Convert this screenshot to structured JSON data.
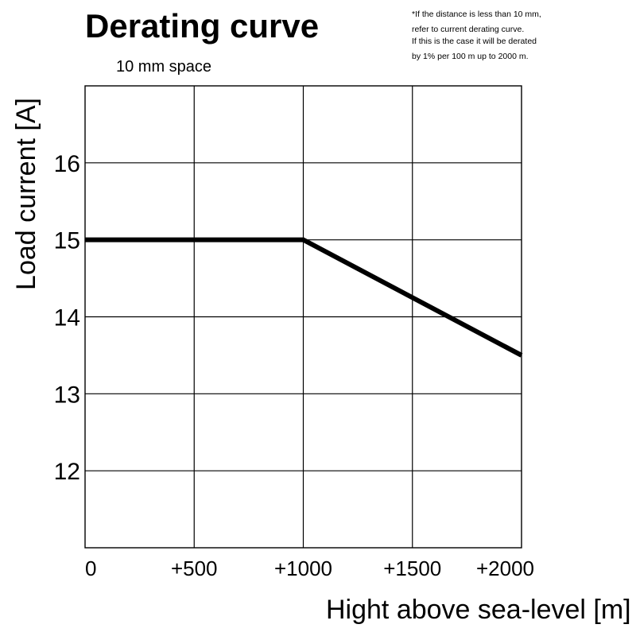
{
  "chart_data": {
    "type": "line",
    "title": "Derating curve",
    "subtitle": "10 mm space",
    "note": [
      "*If the distance is less than 10 mm,",
      "refer to current derating curve.",
      " If this is the case it will be derated",
      "by 1% per 100 m up to 2000 m."
    ],
    "xlabel": "Hight above sea-level [m]",
    "ylabel": "Load current [A]",
    "xlim": [
      0,
      2000
    ],
    "ylim": [
      11,
      17
    ],
    "xticks": [
      {
        "value": 0,
        "label": "0"
      },
      {
        "value": 500,
        "label": "+500"
      },
      {
        "value": 1000,
        "label": "+1000"
      },
      {
        "value": 1500,
        "label": "+1500"
      },
      {
        "value": 2000,
        "label": "+2000"
      }
    ],
    "yticks": [
      {
        "value": 12,
        "label": "12"
      },
      {
        "value": 13,
        "label": "13"
      },
      {
        "value": 14,
        "label": "14"
      },
      {
        "value": 15,
        "label": "15"
      },
      {
        "value": 16,
        "label": "16"
      }
    ],
    "grid": true,
    "series": [
      {
        "name": "10 mm space",
        "x": [
          0,
          1000,
          2000
        ],
        "y": [
          15,
          15,
          13.5
        ]
      }
    ]
  }
}
